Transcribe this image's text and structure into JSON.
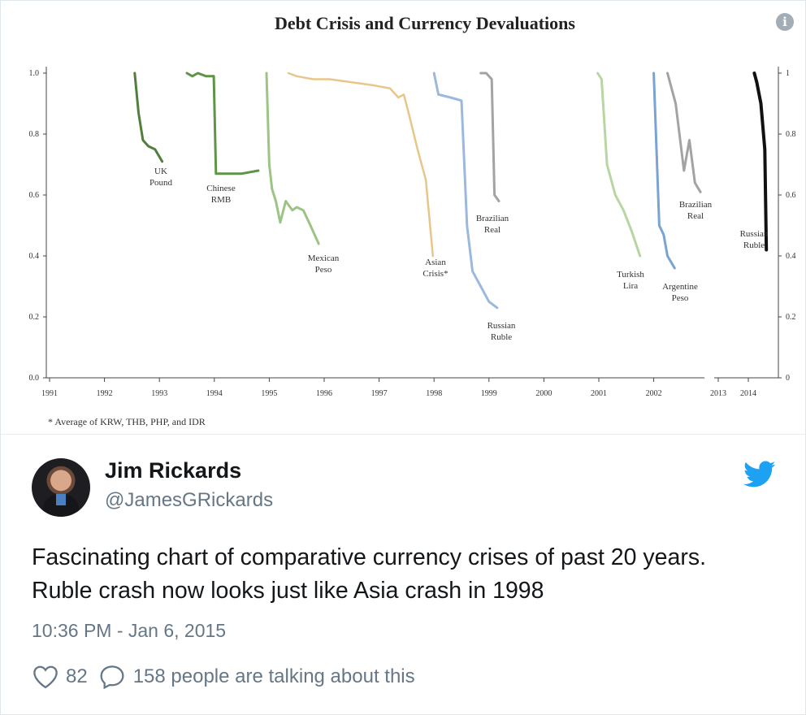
{
  "tweet": {
    "author_name": "Jim Rickards",
    "author_handle": "@JamesGRickards",
    "text": "Fascinating chart of comparative currency crises of past 20 years. Ruble crash now looks just like Asia crash in 1998",
    "timestamp": "10:36 PM - Jan 6, 2015",
    "like_count": "82",
    "talking_text": "158 people are talking about this",
    "icons": [
      "info-icon",
      "twitter-bird-icon",
      "heart-icon",
      "speech-bubble-icon"
    ],
    "colors": {
      "link_blue": "#1da1f2",
      "secondary_text": "#657786"
    }
  },
  "chart_data": {
    "type": "line",
    "title": "Debt Crisis and Currency Devaluations",
    "footnote": "* Average of KRW, THB, PHP, and IDR",
    "x_tick_labels": [
      "1991",
      "1992",
      "1993",
      "1994",
      "1995",
      "1996",
      "1997",
      "1998",
      "1999",
      "2000",
      "2001",
      "2002",
      "2013",
      "2014"
    ],
    "x_tick_values": [
      1991,
      1992,
      1993,
      1994,
      1995,
      1996,
      1997,
      1998,
      1999,
      2000,
      2001,
      2002,
      2013,
      2014
    ],
    "y_left_ticks": [
      "0.0",
      "0.2",
      "0.4",
      "0.6",
      "0.8",
      "1.0"
    ],
    "y_right_ticks": [
      "0",
      "0.2",
      "0.4",
      "0.6",
      "0.8",
      "1"
    ],
    "ylim": [
      0,
      1.0
    ],
    "axis_break": "between 2002 and 2013",
    "grid": false,
    "series": [
      {
        "name": "UK Pound",
        "label": [
          "UK",
          "Pound"
        ],
        "color": "#4f7f3b",
        "width": 3,
        "x": [
          1992.55,
          1992.62,
          1992.7,
          1992.8,
          1992.92,
          1993.05
        ],
        "y": [
          1.0,
          0.87,
          0.78,
          0.76,
          0.75,
          0.71
        ]
      },
      {
        "name": "Chinese RMB",
        "label": [
          "Chinese",
          "RMB"
        ],
        "color": "#5f9447",
        "width": 3,
        "x": [
          1993.5,
          1993.6,
          1993.7,
          1993.85,
          1993.99,
          1994.03,
          1994.5,
          1994.8
        ],
        "y": [
          1.0,
          0.99,
          1.0,
          0.99,
          0.99,
          0.67,
          0.67,
          0.68
        ]
      },
      {
        "name": "Mexican Peso",
        "label": [
          "Mexican",
          "Peso"
        ],
        "color": "#9cc485",
        "width": 3,
        "x": [
          1994.95,
          1995.0,
          1995.05,
          1995.12,
          1995.2,
          1995.3,
          1995.42,
          1995.5,
          1995.62,
          1995.75,
          1995.9
        ],
        "y": [
          1.0,
          0.7,
          0.62,
          0.58,
          0.51,
          0.58,
          0.55,
          0.56,
          0.55,
          0.5,
          0.44
        ]
      },
      {
        "name": "Asian Crisis*",
        "label": [
          "Asian",
          "Crisis*"
        ],
        "color": "#e8c68a",
        "width": 2.5,
        "x": [
          1995.35,
          1995.5,
          1995.8,
          1996.1,
          1996.5,
          1996.9,
          1997.2,
          1997.35,
          1997.45,
          1997.55,
          1997.7,
          1997.85,
          1997.98
        ],
        "y": [
          1.0,
          0.99,
          0.98,
          0.98,
          0.97,
          0.96,
          0.95,
          0.92,
          0.93,
          0.86,
          0.75,
          0.65,
          0.4
        ]
      },
      {
        "name": "Russian Ruble",
        "label": [
          "Russian",
          "Ruble"
        ],
        "color": "#9ab9dc",
        "width": 3,
        "x": [
          1998.0,
          1998.08,
          1998.3,
          1998.5,
          1998.6,
          1998.7,
          1998.85,
          1999.0,
          1999.15
        ],
        "y": [
          1.0,
          0.93,
          0.92,
          0.91,
          0.5,
          0.35,
          0.3,
          0.25,
          0.23
        ]
      },
      {
        "name": "Brazilian Real",
        "label": [
          "Brazilian",
          "Real"
        ],
        "color": "#a3a3a3",
        "width": 3,
        "x": [
          1998.85,
          1998.95,
          1999.05,
          1999.1,
          1999.18
        ],
        "y": [
          1.0,
          1.0,
          0.98,
          0.6,
          0.58
        ]
      },
      {
        "name": "Turkish Lira",
        "label": [
          "Turkish",
          "Lira"
        ],
        "color": "#b7d6a2",
        "width": 3,
        "x": [
          2000.98,
          2001.05,
          2001.15,
          2001.3,
          2001.45,
          2001.6,
          2001.75
        ],
        "y": [
          1.0,
          0.98,
          0.7,
          0.6,
          0.55,
          0.48,
          0.4
        ]
      },
      {
        "name": "Argentine Peso",
        "label": [
          "Argentine",
          "Peso"
        ],
        "color": "#7aa3d1",
        "width": 3,
        "x": [
          2002.0,
          2002.1,
          2002.18,
          2002.25,
          2002.38
        ],
        "y": [
          1.0,
          0.5,
          0.47,
          0.4,
          0.36
        ]
      },
      {
        "name": "Brazilian Real",
        "label": [
          "Brazilian",
          "Real"
        ],
        "color": "#a3a3a3",
        "width": 3,
        "x": [
          2002.25,
          2002.4,
          2002.55,
          2002.65,
          2002.75,
          2002.85
        ],
        "y": [
          1.0,
          0.9,
          0.68,
          0.78,
          0.64,
          0.61
        ]
      },
      {
        "name": "Russian Ruble",
        "label": [
          "Russian",
          "Ruble"
        ],
        "color": "#111111",
        "width": 4,
        "x": [
          2014.2,
          2014.28,
          2014.42,
          2014.55,
          2014.6
        ],
        "y": [
          1.0,
          0.97,
          0.9,
          0.75,
          0.42
        ]
      }
    ]
  }
}
